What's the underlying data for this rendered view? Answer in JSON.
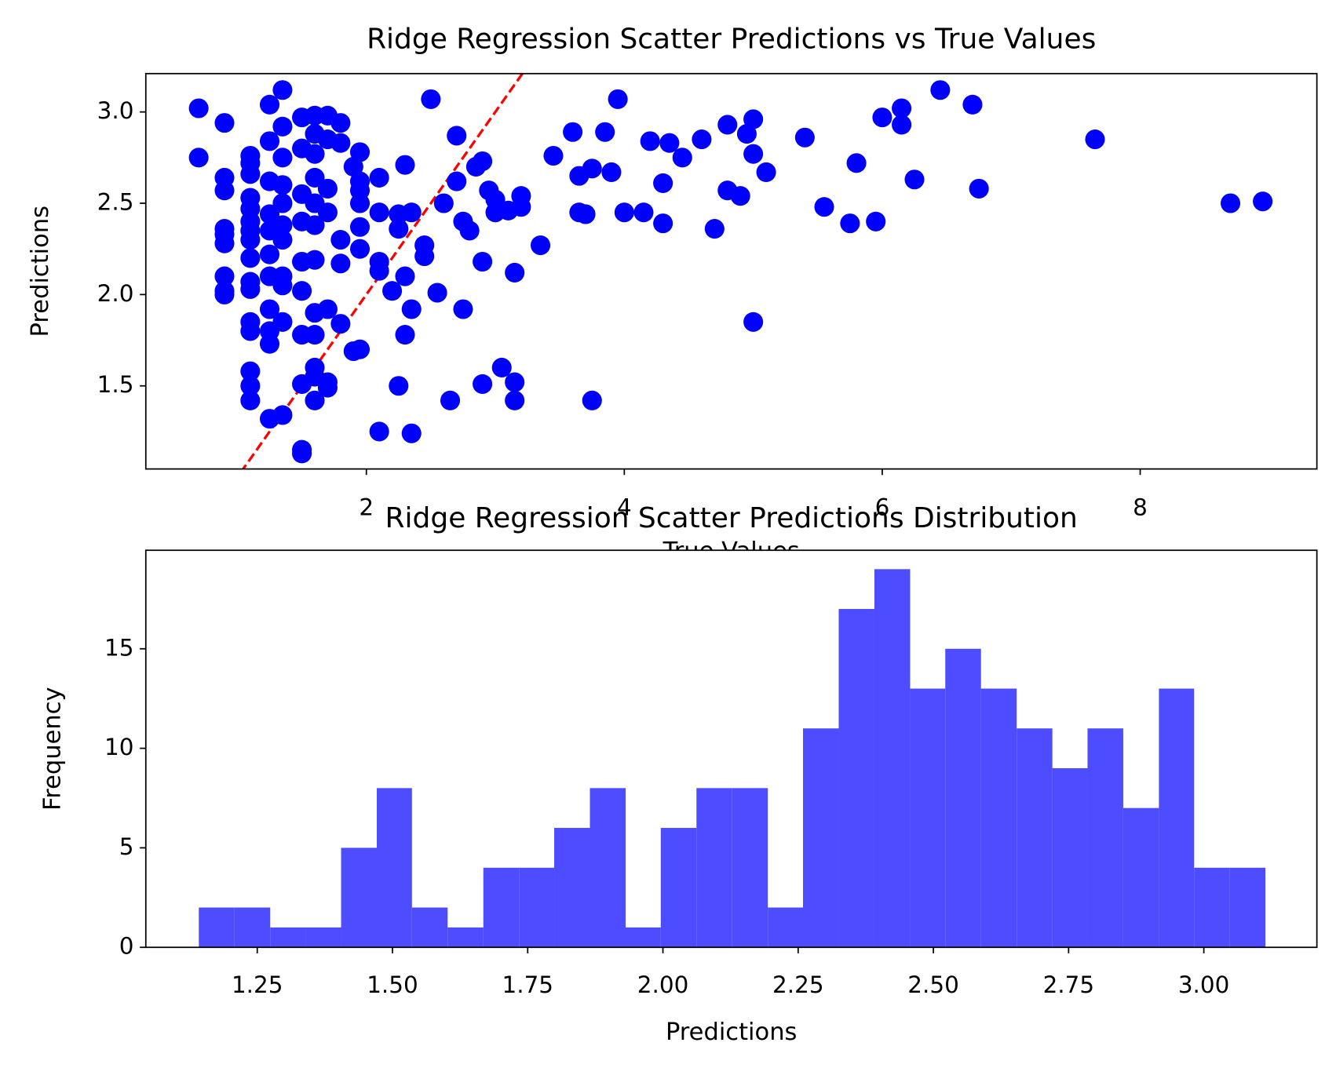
{
  "chart_data": [
    {
      "type": "scatter",
      "title": "Ridge Regression Scatter Predictions vs True Values",
      "xlabel": "True Values",
      "ylabel": "Predictions",
      "color": "#0000ff",
      "x": [
        0.7,
        0.7,
        0.9,
        0.9,
        0.9,
        0.9,
        0.9,
        0.9,
        0.9,
        0.9,
        0.9,
        1.1,
        1.1,
        1.1,
        1.1,
        1.1,
        1.1,
        1.1,
        1.1,
        1.1,
        1.1,
        1.1,
        1.1,
        1.1,
        1.1,
        1.1,
        1.1,
        1.25,
        1.25,
        1.25,
        1.25,
        1.25,
        1.25,
        1.25,
        1.25,
        1.25,
        1.25,
        1.25,
        1.35,
        1.35,
        1.35,
        1.35,
        1.35,
        1.35,
        1.35,
        1.35,
        1.35,
        1.35,
        1.35,
        1.5,
        1.5,
        1.5,
        1.5,
        1.5,
        1.5,
        1.5,
        1.5,
        1.5,
        1.5,
        1.6,
        1.6,
        1.6,
        1.6,
        1.6,
        1.6,
        1.6,
        1.6,
        1.6,
        1.6,
        1.6,
        1.6,
        1.7,
        1.7,
        1.7,
        1.7,
        1.7,
        1.7,
        1.7,
        1.8,
        1.8,
        1.8,
        1.8,
        1.8,
        1.9,
        1.9,
        1.95,
        1.95,
        1.95,
        1.95,
        1.95,
        1.95,
        1.95,
        2.1,
        2.1,
        2.1,
        2.1,
        2.1,
        2.2,
        2.25,
        2.25,
        2.25,
        2.3,
        2.3,
        2.3,
        2.35,
        2.35,
        2.35,
        2.45,
        2.45,
        2.5,
        2.55,
        2.6,
        2.65,
        2.7,
        2.7,
        2.75,
        2.75,
        2.8,
        2.85,
        2.9,
        2.9,
        2.9,
        2.95,
        3.0,
        3.0,
        3.05,
        3.1,
        3.15,
        3.15,
        3.15,
        3.2,
        3.2,
        3.35,
        3.45,
        3.6,
        3.65,
        3.65,
        3.7,
        3.75,
        3.75,
        3.85,
        3.9,
        3.95,
        4.0,
        4.15,
        4.2,
        4.3,
        4.3,
        4.35,
        4.45,
        4.6,
        4.7,
        4.8,
        4.8,
        4.9,
        4.95,
        5.0,
        5.0,
        5.0,
        5.1,
        5.4,
        5.55,
        5.75,
        5.8,
        5.95,
        6.0,
        6.15,
        6.15,
        6.25,
        6.45,
        6.7,
        6.75,
        7.65,
        8.7,
        8.95
      ],
      "values": [
        3.02,
        2.75,
        2.94,
        2.64,
        2.57,
        2.36,
        2.33,
        2.28,
        2.1,
        2.02,
        2.0,
        2.76,
        2.72,
        2.66,
        2.53,
        2.47,
        2.4,
        2.35,
        2.3,
        2.2,
        2.07,
        2.03,
        1.85,
        1.8,
        1.58,
        1.5,
        1.42,
        3.04,
        2.84,
        2.62,
        2.44,
        2.35,
        2.22,
        2.1,
        1.92,
        1.8,
        1.73,
        1.32,
        3.12,
        2.92,
        2.75,
        2.6,
        2.5,
        2.38,
        2.3,
        2.1,
        2.05,
        1.85,
        1.34,
        2.97,
        2.8,
        2.55,
        2.4,
        2.18,
        2.02,
        1.78,
        1.51,
        1.15,
        1.13,
        2.98,
        2.88,
        2.77,
        2.64,
        2.5,
        2.38,
        2.19,
        1.9,
        1.78,
        1.6,
        1.55,
        1.42,
        2.98,
        2.85,
        2.58,
        2.45,
        1.92,
        1.52,
        1.49,
        2.94,
        2.83,
        2.3,
        2.17,
        1.84,
        2.7,
        1.69,
        2.78,
        2.62,
        2.57,
        2.5,
        2.37,
        2.25,
        1.7,
        2.64,
        2.45,
        2.18,
        2.13,
        1.25,
        2.02,
        2.44,
        2.36,
        1.5,
        2.71,
        2.1,
        1.78,
        2.45,
        1.92,
        1.24,
        2.27,
        2.21,
        3.07,
        2.01,
        2.5,
        1.42,
        2.87,
        2.62,
        2.4,
        1.92,
        2.35,
        2.7,
        2.73,
        2.18,
        1.51,
        2.57,
        2.52,
        2.45,
        1.6,
        2.46,
        2.12,
        1.52,
        1.42,
        2.54,
        2.48,
        2.27,
        2.76,
        2.89,
        2.45,
        2.65,
        2.44,
        2.69,
        1.42,
        2.89,
        2.67,
        3.07,
        2.45,
        2.45,
        2.84,
        2.61,
        2.39,
        2.83,
        2.75,
        2.85,
        2.36,
        2.93,
        2.57,
        2.54,
        2.88,
        2.96,
        2.77,
        1.85,
        2.67,
        2.86,
        2.48,
        2.39,
        2.72,
        2.4,
        2.97,
        3.02,
        2.93,
        2.63,
        3.12,
        3.04,
        2.58,
        2.85,
        2.5,
        2.51
      ],
      "reference_line": {
        "slope": 1,
        "intercept": 0,
        "color": "#ff0000",
        "style": "dashed"
      },
      "xlim": [
        0.29,
        9.37
      ],
      "ylim": [
        1.045,
        3.21
      ],
      "xticks": [
        2,
        4,
        6,
        8
      ],
      "yticks": [
        1.5,
        {
          "value": 2,
          "label": "2.0"
        },
        2.5,
        {
          "value": 3,
          "label": "3.0"
        }
      ]
    },
    {
      "type": "histogram",
      "title": "Ridge Regression Scatter Predictions Distribution",
      "xlabel": "Predictions",
      "ylabel": "Frequency",
      "color": "#4d4dff",
      "bins": [
        1.142,
        1.208,
        1.274,
        1.339,
        1.405,
        1.471,
        1.536,
        1.602,
        1.668,
        1.734,
        1.799,
        1.865,
        1.931,
        1.996,
        2.062,
        2.128,
        2.194,
        2.259,
        2.325,
        2.391,
        2.457,
        2.522,
        2.588,
        2.654,
        2.72,
        2.785,
        2.851,
        2.917,
        2.982,
        3.048,
        3.114
      ],
      "values": [
        2,
        2,
        1,
        1,
        5,
        8,
        2,
        1,
        4,
        4,
        6,
        8,
        1,
        6,
        8,
        8,
        2,
        11,
        17,
        19,
        13,
        15,
        13,
        11,
        9,
        11,
        7,
        13,
        4,
        4
      ],
      "xlim": [
        1.044,
        3.209
      ],
      "ylim": [
        0,
        19.95
      ],
      "xticks": [
        1.25,
        {
          "value": 1.5,
          "label": "1.50"
        },
        1.75,
        {
          "value": 2,
          "label": "2.00"
        },
        2.25,
        {
          "value": 2.5,
          "label": "2.50"
        },
        2.75,
        {
          "value": 3,
          "label": "3.00"
        }
      ],
      "yticks": [
        0,
        5,
        10,
        15
      ]
    }
  ]
}
